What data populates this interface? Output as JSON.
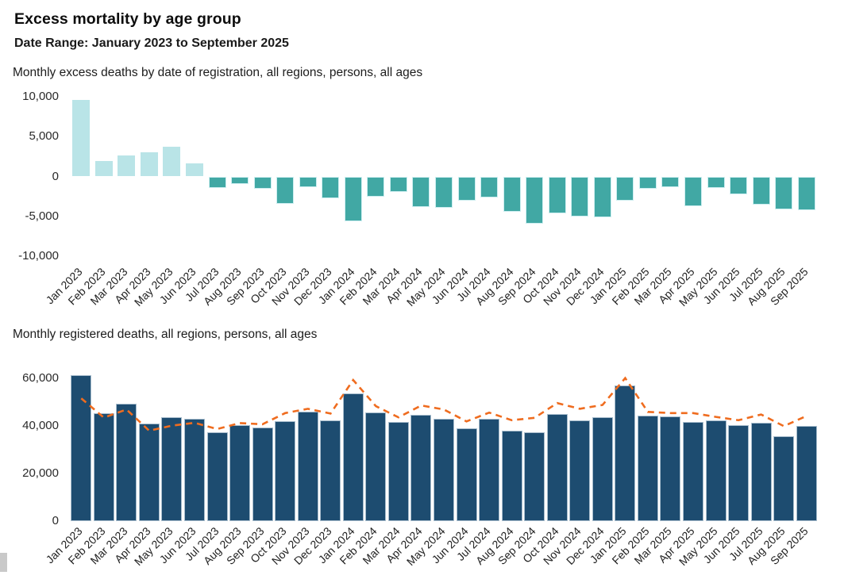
{
  "page": {
    "title": "Excess mortality by age group",
    "subtitle": "Date Range: January 2023 to September 2025"
  },
  "colors": {
    "positive_bar": "#b9e4e7",
    "negative_bar": "#41a8a4",
    "negative_bar_outline": "#cdeef0",
    "registered_bar": "#1d4c70",
    "registered_bar_outline": "#a8bdcd",
    "expected_line": "#ef6c1f",
    "scrollbar_fragment": "#c9c9c9"
  },
  "chart_data": [
    {
      "type": "bar",
      "title": "Monthly excess deaths by date of registration, all regions, persons, all ages",
      "categories": [
        "Jan 2023",
        "Feb 2023",
        "Mar 2023",
        "Apr 2023",
        "May 2023",
        "Jun 2023",
        "Jul 2023",
        "Aug 2023",
        "Sep 2023",
        "Oct 2023",
        "Nov 2023",
        "Dec 2023",
        "Jan 2024",
        "Feb 2024",
        "Mar 2024",
        "Apr 2024",
        "May 2024",
        "Jun 2024",
        "Jul 2024",
        "Aug 2024",
        "Sep 2024",
        "Oct 2024",
        "Nov 2024",
        "Dec 2024",
        "Jan 2025",
        "Feb 2025",
        "Mar 2025",
        "Apr 2025",
        "May 2025",
        "Jun 2025",
        "Jul 2025",
        "Aug 2025",
        "Sep 2025"
      ],
      "values": [
        9600,
        1900,
        2600,
        3000,
        3700,
        1600,
        -1400,
        -900,
        -1500,
        -3400,
        -1300,
        -2700,
        -5600,
        -2500,
        -1900,
        -3800,
        -3900,
        -3000,
        -2600,
        -4400,
        -5900,
        -4600,
        -5000,
        -5100,
        -3000,
        -1500,
        -1300,
        -3700,
        -1400,
        -2200,
        -3500,
        -4100,
        -4200
      ],
      "bar_colors": {
        "positive": "#b9e4e7",
        "negative": "#41a8a4"
      },
      "xlabel": "",
      "ylabel": "",
      "ylim": [
        -10700,
        10700
      ],
      "yticks": [
        {
          "value": 10000,
          "label": "10,000"
        },
        {
          "value": 5000,
          "label": "5,000"
        },
        {
          "value": 0,
          "label": "0"
        },
        {
          "value": -5000,
          "label": "-5,000"
        },
        {
          "value": -10000,
          "label": "-10,000"
        }
      ],
      "grid": false,
      "legend": false
    },
    {
      "type": "bar",
      "title": "Monthly registered deaths, all regions, persons, all ages",
      "categories": [
        "Jan 2023",
        "Feb 2023",
        "Mar 2023",
        "Apr 2023",
        "May 2023",
        "Jun 2023",
        "Jul 2023",
        "Aug 2023",
        "Sep 2023",
        "Oct 2023",
        "Nov 2023",
        "Dec 2023",
        "Jan 2024",
        "Feb 2024",
        "Mar 2024",
        "Apr 2024",
        "May 2024",
        "Jun 2024",
        "Jul 2024",
        "Aug 2024",
        "Sep 2024",
        "Oct 2024",
        "Nov 2024",
        "Dec 2024",
        "Jan 2025",
        "Feb 2025",
        "Mar 2025",
        "Apr 2025",
        "May 2025",
        "Jun 2025",
        "Jul 2025",
        "Aug 2025",
        "Sep 2025"
      ],
      "series": [
        {
          "name": "registered_deaths_bars",
          "type": "bar",
          "color": "#1d4c70",
          "values": [
            61200,
            45400,
            49500,
            41000,
            43800,
            42900,
            37300,
            40300,
            39200,
            42000,
            45900,
            42500,
            53700,
            45800,
            41700,
            44800,
            43000,
            38900,
            43000,
            38000,
            37500,
            45000,
            42200,
            43700,
            57100,
            44400,
            44100,
            41700,
            42400,
            40200,
            41300,
            35800,
            40000
          ]
        },
        {
          "name": "expected_deaths_dashed_line",
          "type": "line",
          "style": "dashed",
          "color": "#ef6c1f",
          "values": [
            51600,
            43500,
            46900,
            38000,
            40100,
            41300,
            38700,
            41200,
            40700,
            45400,
            47200,
            45200,
            59300,
            48300,
            43600,
            48600,
            46900,
            41900,
            45600,
            42400,
            43400,
            49600,
            47200,
            48800,
            60100,
            45900,
            45400,
            45400,
            43800,
            42400,
            44800,
            39900,
            44200
          ]
        }
      ],
      "xlabel": "",
      "ylabel": "",
      "ylim": [
        0,
        69000
      ],
      "yticks": [
        {
          "value": 60000,
          "label": "60,000"
        },
        {
          "value": 40000,
          "label": "40,000"
        },
        {
          "value": 20000,
          "label": "20,000"
        },
        {
          "value": 0,
          "label": "0"
        }
      ],
      "grid": false,
      "legend": false
    }
  ]
}
